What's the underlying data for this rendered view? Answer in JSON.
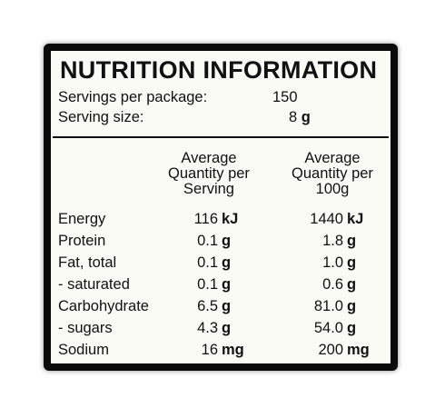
{
  "title": "NUTRITION INFORMATION",
  "servings_per_package": {
    "label": "Servings per package:",
    "value": "150"
  },
  "serving_size": {
    "label": "Serving size:",
    "value": "8",
    "unit": "g"
  },
  "columns": {
    "per_serving": [
      "Average",
      "Quantity per",
      "Serving"
    ],
    "per_100g": [
      "Average",
      "Quantity per",
      "100g"
    ]
  },
  "rows": [
    {
      "name": "Energy",
      "serving": "116",
      "serving_unit": "kJ",
      "per100": "1440",
      "per100_unit": "kJ"
    },
    {
      "name": "Protein",
      "serving": "0.1",
      "serving_unit": "g",
      "per100": "1.8",
      "per100_unit": "g"
    },
    {
      "name": "Fat, total",
      "serving": "0.1",
      "serving_unit": "g",
      "per100": "1.0",
      "per100_unit": "g"
    },
    {
      "name": "- saturated",
      "serving": "0.1",
      "serving_unit": "g",
      "per100": "0.6",
      "per100_unit": "g"
    },
    {
      "name": "Carbohydrate",
      "serving": "6.5",
      "serving_unit": "g",
      "per100": "81.0",
      "per100_unit": "g"
    },
    {
      "name": "- sugars",
      "serving": "4.3",
      "serving_unit": "g",
      "per100": "54.0",
      "per100_unit": "g"
    },
    {
      "name": "Sodium",
      "serving": "16",
      "serving_unit": "mg",
      "per100": "200",
      "per100_unit": "mg"
    }
  ]
}
